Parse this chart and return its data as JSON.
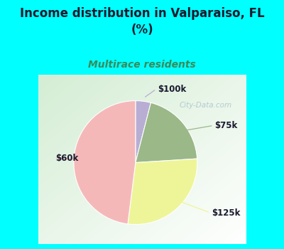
{
  "title": "Income distribution in Valparaiso, FL\n(%)",
  "subtitle": "Multirace residents",
  "title_color": "#1a1a2e",
  "subtitle_color": "#3a8a5a",
  "background_color": "#00ffff",
  "chart_bg_gradient_start": "#d4edd4",
  "chart_bg_gradient_end": "#ffffff",
  "slices": [
    {
      "label": "$100k",
      "value": 4,
      "color": "#b8aed4"
    },
    {
      "label": "$75k",
      "value": 20,
      "color": "#9ab888"
    },
    {
      "label": "$125k",
      "value": 28,
      "color": "#eef598"
    },
    {
      "label": "$60k",
      "value": 48,
      "color": "#f5b8b8"
    }
  ],
  "figsize": [
    4.0,
    3.5
  ],
  "dpi": 100,
  "watermark": "City-Data.com"
}
